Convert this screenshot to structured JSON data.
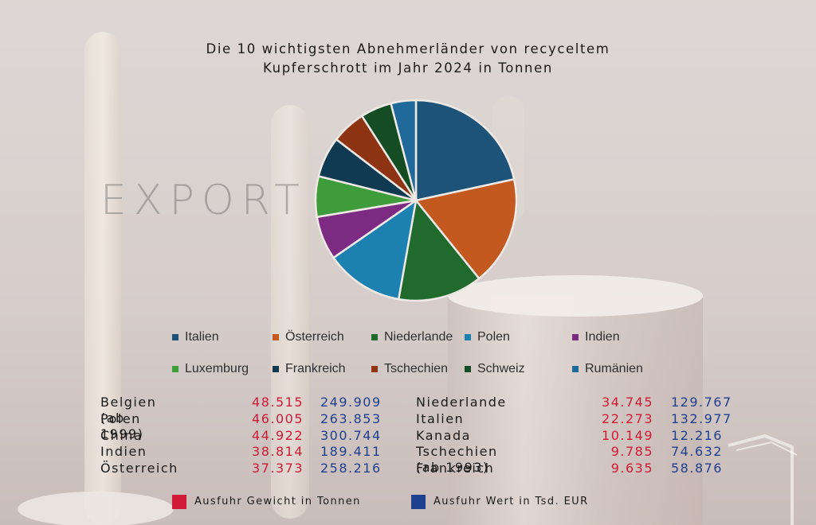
{
  "chart_data": {
    "type": "pie",
    "title_lines": [
      "Die 10 wichtigsten Abnehmerländer von recyceltem",
      "Kupferschrott im Jahr 2024 in Tonnen"
    ],
    "slices": [
      {
        "name": "Italien",
        "value": 21.5,
        "color": "#1d5378"
      },
      {
        "name": "Österreich",
        "value": 17.5,
        "color": "#c4591f"
      },
      {
        "name": "Niederlande",
        "value": 13.5,
        "color": "#1f6a2c"
      },
      {
        "name": "Polen",
        "value": 12.5,
        "color": "#1c80b0"
      },
      {
        "name": "Indien",
        "value": 7.0,
        "color": "#7c2a82"
      },
      {
        "name": "Luxemburg",
        "value": 6.5,
        "color": "#3f9c3a"
      },
      {
        "name": "Frankreich",
        "value": 6.5,
        "color": "#0f3a52"
      },
      {
        "name": "Tschechien",
        "value": 5.5,
        "color": "#8e3412"
      },
      {
        "name": "Schweiz",
        "value": 5.0,
        "color": "#144d24"
      },
      {
        "name": "Rumänien",
        "value": 4.0,
        "color": "#1f6a9a"
      }
    ]
  },
  "watermark": "EXPORT",
  "table_left": [
    {
      "country": "Belgien (ab 1999)",
      "weight": "48.515",
      "value": "249.909"
    },
    {
      "country": "Polen",
      "weight": "46.005",
      "value": "263.853"
    },
    {
      "country": "China",
      "weight": "44.922",
      "value": "300.744"
    },
    {
      "country": "Indien",
      "weight": "38.814",
      "value": "189.411"
    },
    {
      "country": "Österreich",
      "weight": "37.373",
      "value": "258.216"
    }
  ],
  "table_right": [
    {
      "country": "Niederlande",
      "weight": "34.745",
      "value": "129.767"
    },
    {
      "country": "Italien",
      "weight": "22.273",
      "value": "132.977"
    },
    {
      "country": "Kanada",
      "weight": "10.149",
      "value": "12.216"
    },
    {
      "country": "Tschechien (ab 1993)",
      "weight": "9.785",
      "value": "74.632"
    },
    {
      "country": "Frankreich",
      "weight": "9.635",
      "value": "58.876"
    }
  ],
  "bottom_legend": [
    {
      "label": "Ausfuhr Gewicht in Tonnen",
      "color": "#d11a38"
    },
    {
      "label": "Ausfuhr Wert in Tsd. EUR",
      "color": "#1f3f8f"
    }
  ]
}
